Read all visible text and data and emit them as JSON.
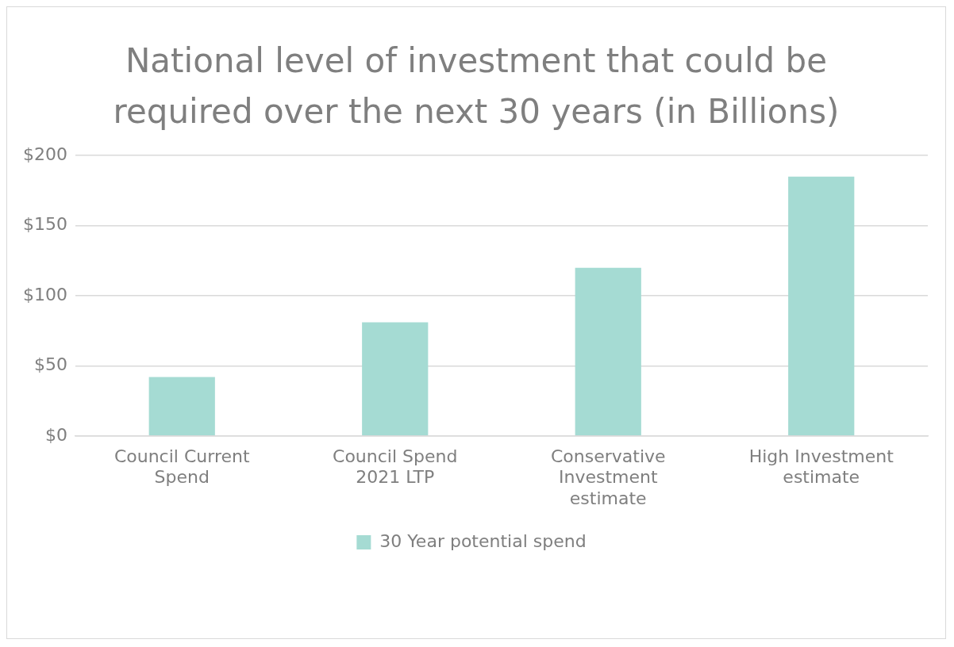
{
  "chart_data": {
    "type": "bar",
    "title": "National level of investment that could be required over the next 30 years (in Billions)",
    "categories": [
      "Council Current Spend",
      "Council Spend 2021 LTP",
      "Conservative Investment estimate",
      "High Investment estimate"
    ],
    "series": [
      {
        "name": "30 Year potential spend",
        "color": "#a5dbd3",
        "values": [
          42,
          81,
          120,
          185
        ]
      }
    ],
    "ylim": [
      0,
      200
    ],
    "yticks": [
      {
        "value": 0,
        "label": "$0"
      },
      {
        "value": 50,
        "label": "$50"
      },
      {
        "value": 100,
        "label": "$100"
      },
      {
        "value": 150,
        "label": "$150"
      },
      {
        "value": 200,
        "label": "$200"
      }
    ],
    "grid": "y",
    "legend": "bottom"
  }
}
